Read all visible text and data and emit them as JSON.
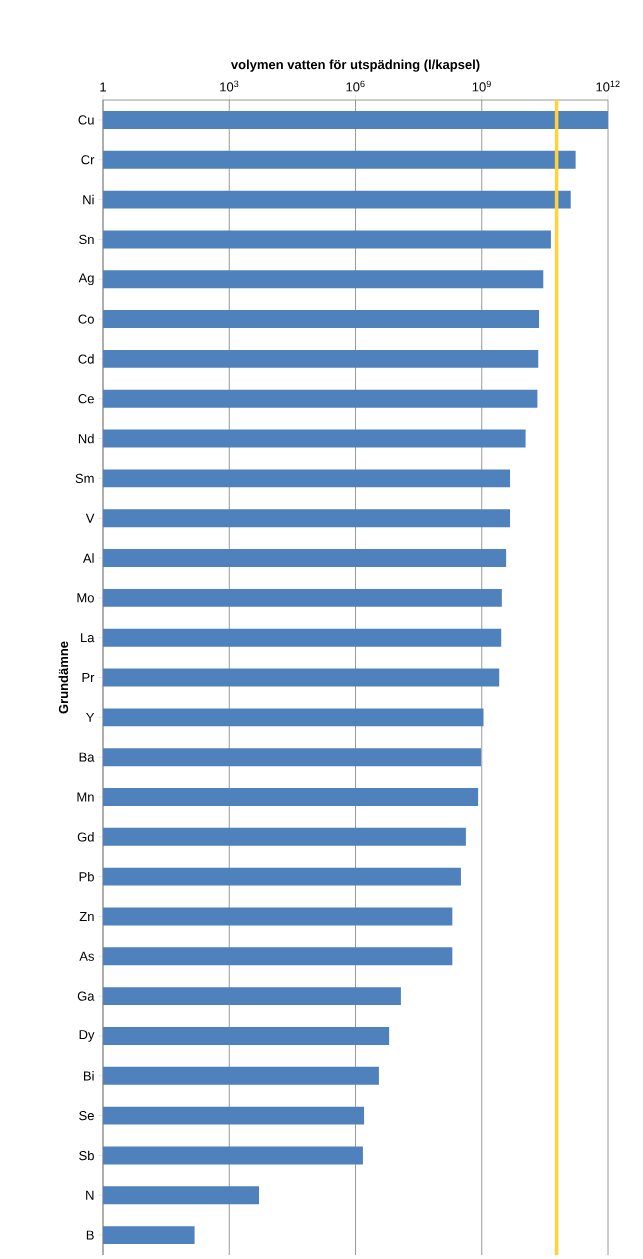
{
  "chart_data": {
    "type": "bar",
    "orientation": "horizontal",
    "log": "x",
    "xlabel": "volymen vatten för utspädning  (l/kapsel)",
    "ylabel": "Grundämne",
    "categories": [
      "Cu",
      "Cr",
      "Ni",
      "Sn",
      "Ag",
      "Co",
      "Cd",
      "Ce",
      "Nd",
      "Sm",
      "V",
      "Al",
      "Mo",
      "La",
      "Pr",
      "Y",
      "Ba",
      "Mn",
      "Gd",
      "Pb",
      "Zn",
      "As",
      "Ga",
      "Dy",
      "Bi",
      "Se",
      "Sb",
      "N",
      "B"
    ],
    "values": [
      1000000000000.0,
      170000000000.0,
      130000000000.0,
      44000000000.0,
      29000000000.0,
      23000000000.0,
      22000000000.0,
      21000000000.0,
      11000000000.0,
      4700000000.0,
      4700000000.0,
      3800000000.0,
      3000000000.0,
      2900000000.0,
      2600000000.0,
      1100000000.0,
      960000000.0,
      820000000.0,
      420000000.0,
      320000000.0,
      200000000.0,
      200000000.0,
      12000000.0,
      6300000.0,
      3600000.0,
      1600000.0,
      1500000.0,
      5100.0,
      150.0
    ],
    "color": "#4f81bd",
    "xlim": [
      1,
      1000000000000.0
    ],
    "xticks": [
      1,
      {
        "value": 1000,
        "label": "10$^{3}$"
      },
      {
        "value": 1000000,
        "label": "10$^{6}$"
      },
      {
        "value": 1000000000,
        "label": "10$^{9}$"
      },
      {
        "value": 1000000000000,
        "label": "10$^{12}$"
      }
    ],
    "grid": "x",
    "ref_lines": [
      {
        "axis": "x",
        "value": 60000000000.0,
        "color": "#ffd43b"
      }
    ]
  }
}
